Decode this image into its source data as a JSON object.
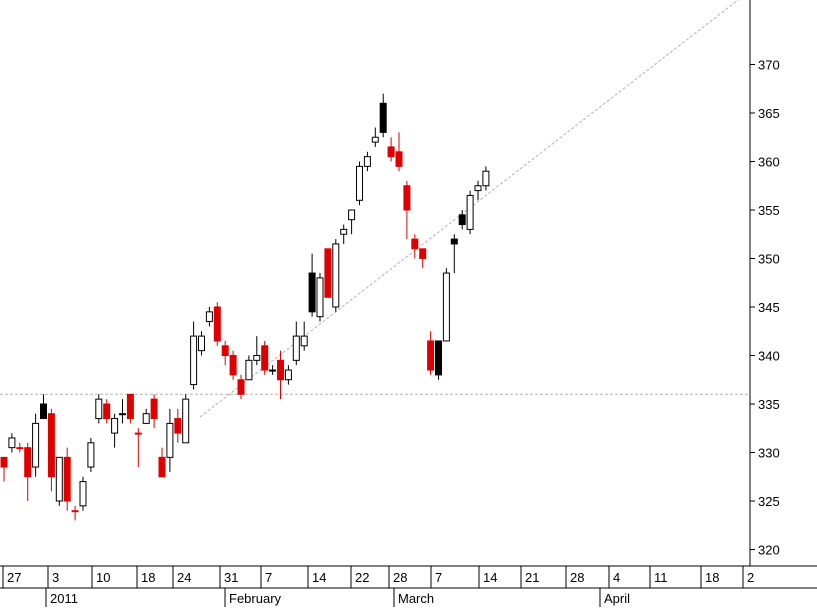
{
  "chart_data": {
    "type": "candlestick",
    "title": "",
    "xlabel": "",
    "ylabel": "",
    "ylim": [
      317.5,
      372.5
    ],
    "grid": false,
    "y_ticks": [
      320,
      325,
      330,
      335,
      340,
      345,
      350,
      355,
      360,
      365,
      370
    ],
    "y_tick_labels": [
      "320",
      "325",
      "330",
      "335",
      "340",
      "345",
      "350",
      "355",
      "360",
      "365",
      "370"
    ],
    "x_day_labels": [
      "27",
      "3",
      "10",
      "18",
      "24",
      "31",
      "7",
      "14",
      "22",
      "28",
      "7",
      "14",
      "21",
      "28",
      "4",
      "11",
      "18",
      "2"
    ],
    "x_month_labels": [
      "2011",
      "February",
      "March",
      "April"
    ],
    "reference_lines": {
      "horizontal_level": 336,
      "trendline": [
        {
          "date": "2011-01-25",
          "value": 318
        },
        {
          "date": "2011-04-21",
          "value": 356.5
        }
      ]
    },
    "colors": {
      "up": "#ffffff",
      "down": "#000000",
      "lower_close": "#e00000",
      "reference": "#b4b4b4"
    },
    "candles": [
      {
        "date": "2011-01-25",
        "open": 328.5,
        "high": 329.5,
        "low": 327.0,
        "close": 329.5,
        "color": "red"
      },
      {
        "date": "2011-01-26",
        "open": 330.5,
        "high": 332.0,
        "low": 330.0,
        "close": 331.5,
        "color": "white"
      },
      {
        "date": "2011-01-27",
        "open": 330.5,
        "high": 331.0,
        "low": 330.0,
        "close": 330.5,
        "color": "red"
      },
      {
        "date": "2011-01-28",
        "open": 330.5,
        "high": 331.0,
        "low": 325.0,
        "close": 327.5,
        "color": "red"
      },
      {
        "date": "2011-01-31",
        "open": 328.5,
        "high": 334.0,
        "low": 327.5,
        "close": 333.0,
        "color": "white"
      },
      {
        "date": "2011-02-01",
        "open": 335.0,
        "high": 336.0,
        "low": 333.5,
        "close": 333.5,
        "color": "black"
      },
      {
        "date": "2011-02-02",
        "open": 334.0,
        "high": 334.5,
        "low": 326.0,
        "close": 327.5,
        "color": "red"
      },
      {
        "date": "2011-02-03",
        "open": 325.0,
        "high": 329.0,
        "low": 324.5,
        "close": 329.5,
        "color": "white"
      },
      {
        "date": "2011-02-04",
        "open": 329.5,
        "high": 330.5,
        "low": 324.0,
        "close": 325.0,
        "color": "red"
      },
      {
        "date": "2011-02-07",
        "open": 324.0,
        "high": 324.5,
        "low": 323.0,
        "close": 324.0,
        "color": "red"
      },
      {
        "date": "2011-02-08",
        "open": 324.5,
        "high": 327.5,
        "low": 324.0,
        "close": 327.0,
        "color": "white"
      },
      {
        "date": "2011-02-09",
        "open": 328.5,
        "high": 331.5,
        "low": 328.0,
        "close": 331.0,
        "color": "white"
      },
      {
        "date": "2011-02-10",
        "open": 333.5,
        "high": 336.0,
        "low": 333.0,
        "close": 335.5,
        "color": "white"
      },
      {
        "date": "2011-02-11",
        "open": 335.0,
        "high": 335.5,
        "low": 333.0,
        "close": 333.5,
        "color": "red"
      },
      {
        "date": "2011-02-14",
        "open": 332.0,
        "high": 334.0,
        "low": 330.5,
        "close": 333.5,
        "color": "white"
      },
      {
        "date": "2011-02-15",
        "open": 334.0,
        "high": 335.5,
        "low": 333.0,
        "close": 334.0,
        "color": "white"
      },
      {
        "date": "2011-02-16",
        "open": 336.0,
        "high": 336.0,
        "low": 333.0,
        "close": 333.5,
        "color": "red"
      },
      {
        "date": "2011-02-17",
        "open": 332.0,
        "high": 332.5,
        "low": 328.5,
        "close": 332.0,
        "color": "red"
      },
      {
        "date": "2011-02-18",
        "open": 333.0,
        "high": 334.5,
        "low": 333.0,
        "close": 334.0,
        "color": "white"
      },
      {
        "date": "2011-02-22",
        "open": 335.5,
        "high": 336.0,
        "low": 332.5,
        "close": 333.5,
        "color": "red"
      },
      {
        "date": "2011-02-23",
        "open": 329.5,
        "high": 330.5,
        "low": 327.5,
        "close": 327.5,
        "color": "red"
      },
      {
        "date": "2011-02-24",
        "open": 329.5,
        "high": 334.5,
        "low": 328.0,
        "close": 333.0,
        "color": "white"
      },
      {
        "date": "2011-02-25",
        "open": 333.5,
        "high": 334.5,
        "low": 331.0,
        "close": 332.0,
        "color": "red"
      },
      {
        "date": "2011-02-28",
        "open": 331.0,
        "high": 336.0,
        "low": 331.0,
        "close": 335.5,
        "color": "white"
      },
      {
        "date": "2011-03-01",
        "open": 337.0,
        "high": 343.5,
        "low": 336.5,
        "close": 342.0,
        "color": "white"
      },
      {
        "date": "2011-03-02",
        "open": 340.5,
        "high": 342.5,
        "low": 340.0,
        "close": 342.0,
        "color": "white"
      },
      {
        "date": "2011-03-03",
        "open": 343.5,
        "high": 345.0,
        "low": 343.0,
        "close": 344.5,
        "color": "white"
      },
      {
        "date": "2011-03-04",
        "open": 345.0,
        "high": 345.5,
        "low": 341.0,
        "close": 341.5,
        "color": "red"
      },
      {
        "date": "2011-03-07",
        "open": 341.0,
        "high": 341.5,
        "low": 339.0,
        "close": 340.0,
        "color": "red"
      },
      {
        "date": "2011-03-08",
        "open": 340.0,
        "high": 340.5,
        "low": 337.5,
        "close": 338.0,
        "color": "red"
      },
      {
        "date": "2011-03-09",
        "open": 337.5,
        "high": 338.0,
        "low": 335.5,
        "close": 336.0,
        "color": "red"
      },
      {
        "date": "2011-03-10",
        "open": 337.5,
        "high": 340.0,
        "low": 337.5,
        "close": 339.5,
        "color": "white"
      },
      {
        "date": "2011-03-11",
        "open": 339.5,
        "high": 342.0,
        "low": 339.0,
        "close": 340.0,
        "color": "white"
      },
      {
        "date": "2011-03-14",
        "open": 341.0,
        "high": 341.5,
        "low": 338.0,
        "close": 338.5,
        "color": "red"
      },
      {
        "date": "2011-03-15",
        "open": 338.5,
        "high": 339.0,
        "low": 338.0,
        "close": 338.5,
        "color": "white"
      },
      {
        "date": "2011-03-16",
        "open": 339.5,
        "high": 340.5,
        "low": 335.5,
        "close": 337.5,
        "color": "red"
      },
      {
        "date": "2011-03-17",
        "open": 337.5,
        "high": 339.0,
        "low": 337.0,
        "close": 338.5,
        "color": "white"
      },
      {
        "date": "2011-03-18",
        "open": 339.5,
        "high": 343.5,
        "low": 339.0,
        "close": 342.0,
        "color": "white"
      },
      {
        "date": "2011-03-21",
        "open": 341.0,
        "high": 343.5,
        "low": 340.5,
        "close": 342.0,
        "color": "white"
      },
      {
        "date": "2011-03-22",
        "open": 348.5,
        "high": 350.5,
        "low": 344.0,
        "close": 344.5,
        "color": "black"
      },
      {
        "date": "2011-03-23",
        "open": 344.0,
        "high": 348.5,
        "low": 343.5,
        "close": 348.0,
        "color": "white"
      },
      {
        "date": "2011-03-24",
        "open": 351.0,
        "high": 351.0,
        "low": 346.0,
        "close": 346.0,
        "color": "red"
      },
      {
        "date": "2011-03-25",
        "open": 345.0,
        "high": 352.0,
        "low": 344.5,
        "close": 351.5,
        "color": "white"
      },
      {
        "date": "2011-03-28",
        "open": 352.5,
        "high": 353.5,
        "low": 351.5,
        "close": 353.0,
        "color": "white"
      },
      {
        "date": "2011-03-29",
        "open": 354.0,
        "high": 355.0,
        "low": 352.5,
        "close": 355.0,
        "color": "white"
      },
      {
        "date": "2011-03-30",
        "open": 356.0,
        "high": 360.0,
        "low": 355.5,
        "close": 359.5,
        "color": "white"
      },
      {
        "date": "2011-03-31",
        "open": 359.5,
        "high": 361.0,
        "low": 359.0,
        "close": 360.5,
        "color": "white"
      },
      {
        "date": "2011-04-01",
        "open": 362.0,
        "high": 363.5,
        "low": 361.5,
        "close": 362.5,
        "color": "white"
      },
      {
        "date": "2011-04-04",
        "open": 366.0,
        "high": 367.0,
        "low": 362.5,
        "close": 363.0,
        "color": "black"
      },
      {
        "date": "2011-04-05",
        "open": 361.5,
        "high": 362.5,
        "low": 360.0,
        "close": 360.5,
        "color": "red"
      },
      {
        "date": "2011-04-06",
        "open": 361.0,
        "high": 363.0,
        "low": 359.0,
        "close": 359.5,
        "color": "red"
      },
      {
        "date": "2011-04-07",
        "open": 357.5,
        "high": 358.0,
        "low": 352.0,
        "close": 355.0,
        "color": "red"
      },
      {
        "date": "2011-04-08",
        "open": 351.0,
        "high": 352.5,
        "low": 350.0,
        "close": 352.0,
        "color": "red"
      },
      {
        "date": "2011-04-11",
        "open": 350.0,
        "high": 351.0,
        "low": 349.0,
        "close": 351.0,
        "color": "red"
      },
      {
        "date": "2011-04-12",
        "open": 341.5,
        "high": 342.5,
        "low": 338.0,
        "close": 338.5,
        "color": "red"
      },
      {
        "date": "2011-04-13",
        "open": 341.5,
        "high": 341.5,
        "low": 337.5,
        "close": 338.0,
        "color": "black"
      },
      {
        "date": "2011-04-14",
        "open": 341.5,
        "high": 349.0,
        "low": 341.5,
        "close": 348.5,
        "color": "white"
      },
      {
        "date": "2011-04-15",
        "open": 352.0,
        "high": 352.5,
        "low": 348.5,
        "close": 351.5,
        "color": "black"
      },
      {
        "date": "2011-04-18",
        "open": 354.5,
        "high": 355.0,
        "low": 353.0,
        "close": 353.5,
        "color": "black"
      },
      {
        "date": "2011-04-19",
        "open": 353.0,
        "high": 357.0,
        "low": 352.5,
        "close": 356.5,
        "color": "white"
      },
      {
        "date": "2011-04-20",
        "open": 357.0,
        "high": 358.0,
        "low": 356.0,
        "close": 357.5,
        "color": "white"
      },
      {
        "date": "2011-04-21",
        "open": 357.5,
        "high": 359.5,
        "low": 357.0,
        "close": 359.0,
        "color": "white"
      }
    ]
  }
}
